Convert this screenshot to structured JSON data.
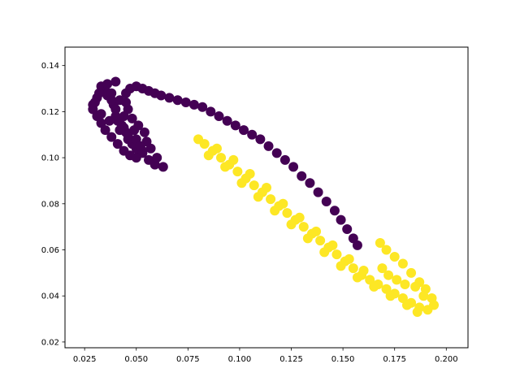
{
  "chart_data": {
    "type": "scatter",
    "title": "",
    "xlabel": "",
    "ylabel": "",
    "xlim": [
      0.0155,
      0.2105
    ],
    "ylim": [
      0.0175,
      0.148
    ],
    "grid": false,
    "legend": "none",
    "x_ticks": [
      0.025,
      0.05,
      0.075,
      0.1,
      0.125,
      0.15,
      0.175,
      0.2
    ],
    "x_tick_labels": [
      "0.025",
      "0.050",
      "0.075",
      "0.100",
      "0.125",
      "0.150",
      "0.175",
      "0.200"
    ],
    "y_ticks": [
      0.02,
      0.04,
      0.06,
      0.08,
      0.1,
      0.12,
      0.14
    ],
    "y_tick_labels": [
      "0.02",
      "0.04",
      "0.06",
      "0.08",
      "0.10",
      "0.12",
      "0.14"
    ],
    "series": [
      {
        "color": "#440154",
        "points": [
          [
            0.063,
            0.096
          ],
          [
            0.059,
            0.097
          ],
          [
            0.056,
            0.099
          ],
          [
            0.053,
            0.102
          ],
          [
            0.05,
            0.104
          ],
          [
            0.048,
            0.106
          ],
          [
            0.046,
            0.108
          ],
          [
            0.045,
            0.111
          ],
          [
            0.044,
            0.113
          ],
          [
            0.043,
            0.114
          ],
          [
            0.041,
            0.116
          ],
          [
            0.04,
            0.118
          ],
          [
            0.04,
            0.121
          ],
          [
            0.039,
            0.123
          ],
          [
            0.038,
            0.125
          ],
          [
            0.036,
            0.127
          ],
          [
            0.035,
            0.129
          ],
          [
            0.033,
            0.131
          ],
          [
            0.031,
            0.126
          ],
          [
            0.029,
            0.123
          ],
          [
            0.029,
            0.121
          ],
          [
            0.031,
            0.118
          ],
          [
            0.033,
            0.115
          ],
          [
            0.035,
            0.112
          ],
          [
            0.038,
            0.109
          ],
          [
            0.041,
            0.106
          ],
          [
            0.044,
            0.103
          ],
          [
            0.047,
            0.101
          ],
          [
            0.05,
            0.1
          ],
          [
            0.053,
            0.103
          ],
          [
            0.055,
            0.107
          ],
          [
            0.054,
            0.111
          ],
          [
            0.051,
            0.114
          ],
          [
            0.048,
            0.117
          ],
          [
            0.046,
            0.121
          ],
          [
            0.045,
            0.124
          ],
          [
            0.045,
            0.128
          ],
          [
            0.047,
            0.13
          ],
          [
            0.05,
            0.131
          ],
          [
            0.053,
            0.13
          ],
          [
            0.056,
            0.129
          ],
          [
            0.059,
            0.128
          ],
          [
            0.062,
            0.127
          ],
          [
            0.066,
            0.126
          ],
          [
            0.07,
            0.125
          ],
          [
            0.074,
            0.124
          ],
          [
            0.078,
            0.123
          ],
          [
            0.082,
            0.122
          ],
          [
            0.086,
            0.12
          ],
          [
            0.09,
            0.118
          ],
          [
            0.094,
            0.116
          ],
          [
            0.098,
            0.114
          ],
          [
            0.102,
            0.112
          ],
          [
            0.106,
            0.11
          ],
          [
            0.11,
            0.108
          ],
          [
            0.114,
            0.105
          ],
          [
            0.118,
            0.102
          ],
          [
            0.122,
            0.099
          ],
          [
            0.126,
            0.096
          ],
          [
            0.13,
            0.092
          ],
          [
            0.134,
            0.089
          ],
          [
            0.138,
            0.085
          ],
          [
            0.142,
            0.081
          ],
          [
            0.146,
            0.077
          ],
          [
            0.149,
            0.073
          ],
          [
            0.152,
            0.069
          ],
          [
            0.155,
            0.065
          ],
          [
            0.157,
            0.062
          ],
          [
            0.04,
            0.133
          ],
          [
            0.036,
            0.132
          ],
          [
            0.032,
            0.128
          ],
          [
            0.03,
            0.124
          ],
          [
            0.033,
            0.119
          ],
          [
            0.037,
            0.116
          ],
          [
            0.042,
            0.112
          ],
          [
            0.046,
            0.11
          ],
          [
            0.05,
            0.108
          ],
          [
            0.052,
            0.105
          ],
          [
            0.049,
            0.112
          ],
          [
            0.044,
            0.118
          ],
          [
            0.042,
            0.125
          ],
          [
            0.038,
            0.128
          ],
          [
            0.057,
            0.104
          ],
          [
            0.06,
            0.1
          ]
        ]
      },
      {
        "color": "#fde725",
        "points": [
          [
            0.08,
            0.108
          ],
          [
            0.083,
            0.106
          ],
          [
            0.087,
            0.103
          ],
          [
            0.091,
            0.1
          ],
          [
            0.095,
            0.097
          ],
          [
            0.099,
            0.094
          ],
          [
            0.103,
            0.091
          ],
          [
            0.107,
            0.088
          ],
          [
            0.111,
            0.085
          ],
          [
            0.115,
            0.082
          ],
          [
            0.119,
            0.079
          ],
          [
            0.123,
            0.076
          ],
          [
            0.127,
            0.073
          ],
          [
            0.131,
            0.07
          ],
          [
            0.135,
            0.067
          ],
          [
            0.139,
            0.064
          ],
          [
            0.143,
            0.061
          ],
          [
            0.147,
            0.058
          ],
          [
            0.151,
            0.055
          ],
          [
            0.155,
            0.052
          ],
          [
            0.159,
            0.049
          ],
          [
            0.163,
            0.047
          ],
          [
            0.167,
            0.045
          ],
          [
            0.171,
            0.043
          ],
          [
            0.175,
            0.041
          ],
          [
            0.179,
            0.039
          ],
          [
            0.183,
            0.037
          ],
          [
            0.187,
            0.035
          ],
          [
            0.191,
            0.034
          ],
          [
            0.194,
            0.036
          ],
          [
            0.193,
            0.039
          ],
          [
            0.19,
            0.043
          ],
          [
            0.187,
            0.046
          ],
          [
            0.183,
            0.05
          ],
          [
            0.179,
            0.054
          ],
          [
            0.175,
            0.057
          ],
          [
            0.171,
            0.06
          ],
          [
            0.168,
            0.063
          ],
          [
            0.085,
            0.101
          ],
          [
            0.093,
            0.096
          ],
          [
            0.101,
            0.089
          ],
          [
            0.109,
            0.083
          ],
          [
            0.117,
            0.077
          ],
          [
            0.125,
            0.071
          ],
          [
            0.133,
            0.065
          ],
          [
            0.141,
            0.059
          ],
          [
            0.149,
            0.053
          ],
          [
            0.157,
            0.048
          ],
          [
            0.165,
            0.044
          ],
          [
            0.173,
            0.04
          ],
          [
            0.181,
            0.036
          ],
          [
            0.186,
            0.033
          ],
          [
            0.189,
            0.04
          ],
          [
            0.185,
            0.044
          ],
          [
            0.18,
            0.045
          ],
          [
            0.176,
            0.047
          ],
          [
            0.172,
            0.049
          ],
          [
            0.169,
            0.052
          ],
          [
            0.16,
            0.051
          ],
          [
            0.153,
            0.056
          ],
          [
            0.145,
            0.062
          ],
          [
            0.137,
            0.068
          ],
          [
            0.129,
            0.074
          ],
          [
            0.121,
            0.08
          ],
          [
            0.113,
            0.087
          ],
          [
            0.105,
            0.093
          ],
          [
            0.097,
            0.099
          ],
          [
            0.089,
            0.104
          ]
        ]
      }
    ]
  }
}
